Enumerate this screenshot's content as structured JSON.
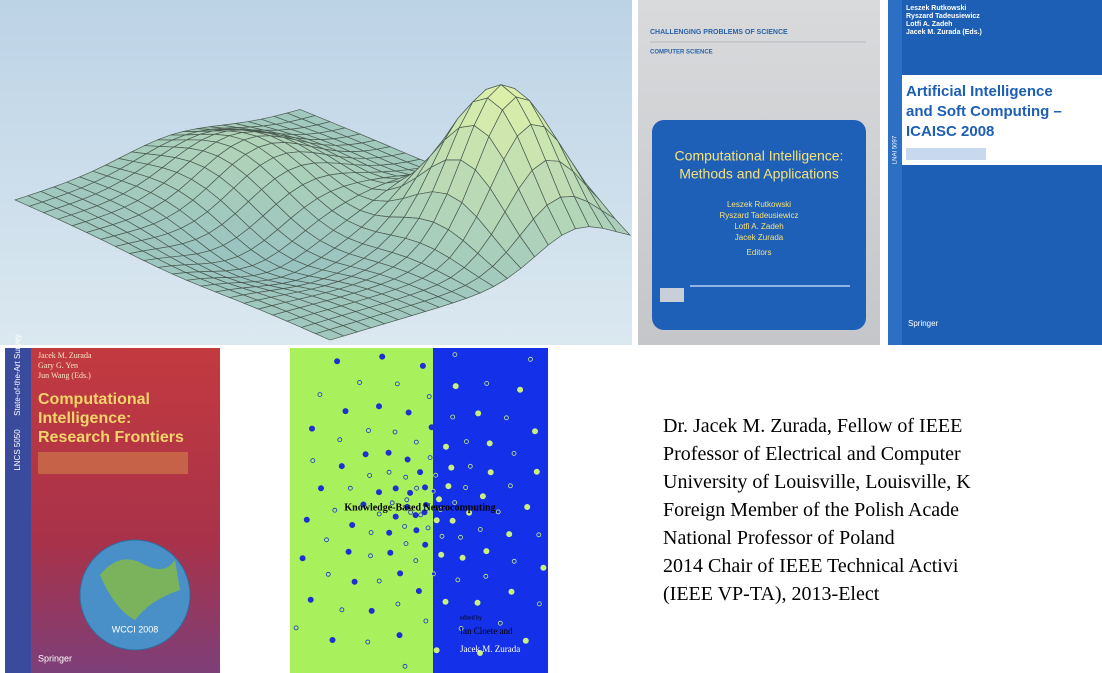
{
  "book_methods": {
    "series": "CHALLENGING PROBLEMS OF SCIENCE",
    "subject": "COMPUTER SCIENCE",
    "title": [
      "Computational Intelligence:",
      "Methods and Applications"
    ],
    "authors": [
      "Leszek Rutkowski",
      "Ryszard Tadeusiewicz",
      "Lotfi A. Zadeh",
      "Jacek Zurada"
    ],
    "role": "Editors"
  },
  "book_icaisc": {
    "authors": [
      "Leszek Rutkowski",
      "Ryszard Tadeusiewicz",
      "Lotfi A. Zadeh",
      "Jacek M. Zurada (Eds.)"
    ],
    "title": [
      "Artificial Intelligence",
      "and Soft Computing –",
      "ICAISC 2008"
    ],
    "series": "LNAI 5097",
    "publisher": "Springer"
  },
  "book_frontiers": {
    "authors": [
      "Jacek M. Zurada",
      "Gary G. Yen",
      "Jun Wang (Eds.)"
    ],
    "title": [
      "Computational",
      "Intelligence:",
      "Research Frontiers"
    ],
    "series": "LNCS 5050",
    "band": "State-of-the-Art Survey",
    "event": "WCCI 2008",
    "publisher": "Springer"
  },
  "book_neuro": {
    "title": "Knowledge-Based Neurocomputing",
    "edited": "edited by",
    "editors": [
      "Ian Cloete and",
      "Jacek M. Zurada"
    ]
  },
  "bio": [
    "Dr. Jacek M. Zurada, Fellow of IEEE",
    "Professor of Electrical and Computer",
    "University of Louisville, Louisville, K",
    "Foreign Member of the Polish Acade",
    "National Professor of Poland",
    "2014 Chair of IEEE Technical Activi",
    "(IEEE VP-TA), 2013-Elect"
  ]
}
